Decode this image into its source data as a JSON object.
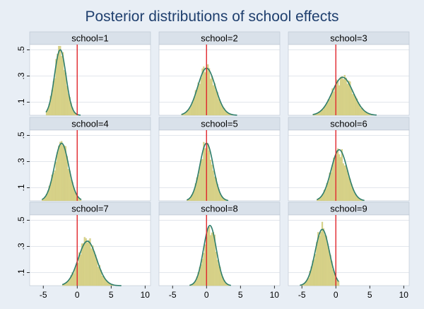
{
  "chart_data": {
    "type": "histogram",
    "title": "Posterior distributions of school effects",
    "layout": "3x3 grid",
    "x_axis": {
      "range": [
        -7,
        10.8
      ],
      "ticks": [
        "-5",
        "0",
        "5",
        "10"
      ],
      "tick_values": [
        -5,
        0,
        5,
        10
      ],
      "label": ""
    },
    "y_axis": {
      "range": [
        0,
        0.54
      ],
      "ticks": [
        ".1",
        ".3",
        ".5"
      ],
      "tick_values": [
        0.1,
        0.3,
        0.5
      ],
      "label": ""
    },
    "reference_line_x": 0,
    "colors": {
      "background": "#e8eef5",
      "panel_bg": "#ffffff",
      "strip_bg": "#d9e1ea",
      "bars": "#d9d48a",
      "bar_edge": "#c8c27a",
      "density_line": "#2e7d6b",
      "reference_line": "#e0262c",
      "title": "#1f3f6e",
      "grid": "#d0d8e0"
    },
    "panels": [
      {
        "label": "school=1",
        "mean": -2.5,
        "sd": 0.85,
        "xmin": -4.6,
        "xmax": 0.5,
        "peak": 0.5
      },
      {
        "label": "school=2",
        "mean": 0.0,
        "sd": 1.3,
        "xmin": -3.7,
        "xmax": 4.5,
        "peak": 0.36
      },
      {
        "label": "school=3",
        "mean": 1.0,
        "sd": 1.55,
        "xmin": -3.4,
        "xmax": 6.0,
        "peak": 0.29
      },
      {
        "label": "school=4",
        "mean": -2.3,
        "sd": 1.05,
        "xmin": -5.2,
        "xmax": 0.6,
        "peak": 0.44
      },
      {
        "label": "school=5",
        "mean": 0.0,
        "sd": 1.0,
        "xmin": -2.9,
        "xmax": 3.2,
        "peak": 0.44
      },
      {
        "label": "school=6",
        "mean": 0.5,
        "sd": 1.2,
        "xmin": -2.8,
        "xmax": 4.2,
        "peak": 0.39
      },
      {
        "label": "school=7",
        "mean": 1.5,
        "sd": 1.35,
        "xmin": -2.2,
        "xmax": 6.5,
        "peak": 0.34
      },
      {
        "label": "school=8",
        "mean": 0.5,
        "sd": 0.95,
        "xmin": -2.5,
        "xmax": 3.6,
        "peak": 0.46
      },
      {
        "label": "school=9",
        "mean": -2.0,
        "sd": 1.05,
        "xmin": -5.3,
        "xmax": 0.4,
        "peak": 0.43
      }
    ]
  }
}
